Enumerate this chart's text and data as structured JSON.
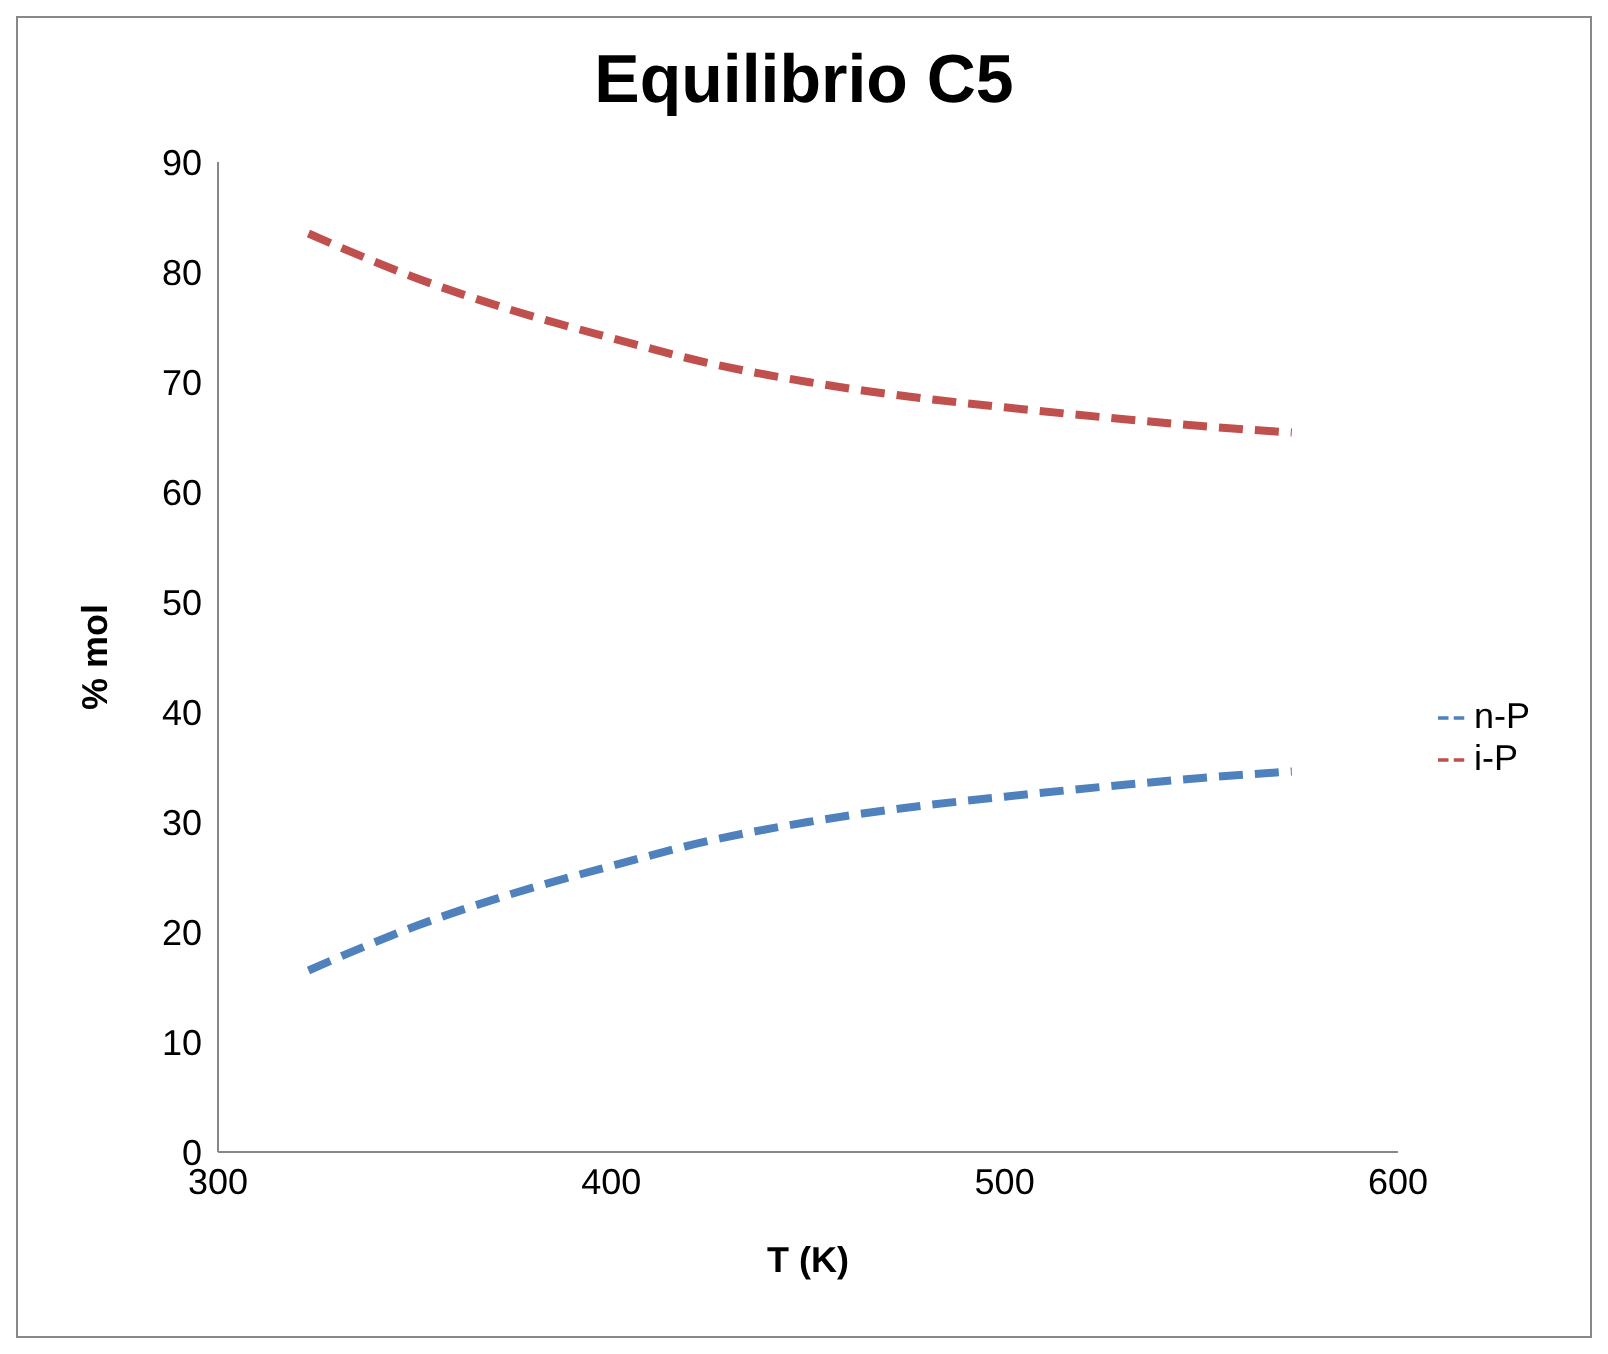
{
  "chart_data": {
    "type": "line",
    "title": "Equilibrio C5",
    "xlabel": "T (K)",
    "ylabel": "% mol",
    "x": [
      323,
      350,
      375,
      400,
      425,
      450,
      475,
      500,
      525,
      550,
      573
    ],
    "series": [
      {
        "name": "n-P",
        "color": "#4f81bd",
        "values": [
          16.5,
          20.5,
          23.5,
          26,
          28.3,
          30,
          31.3,
          32.3,
          33.2,
          34,
          34.6
        ]
      },
      {
        "name": "i-P",
        "color": "#c0504d",
        "values": [
          83.5,
          79.5,
          76.5,
          74,
          71.7,
          70,
          68.7,
          67.7,
          66.8,
          66,
          65.4
        ]
      }
    ],
    "xlim": [
      300,
      600
    ],
    "xticks": [
      300,
      400,
      500,
      600
    ],
    "ylim": [
      0,
      90
    ],
    "yticks": [
      0,
      10,
      20,
      30,
      40,
      50,
      60,
      70,
      80,
      90
    ],
    "grid": false,
    "legend": "right",
    "marker": "none",
    "line_style": "dashed"
  }
}
